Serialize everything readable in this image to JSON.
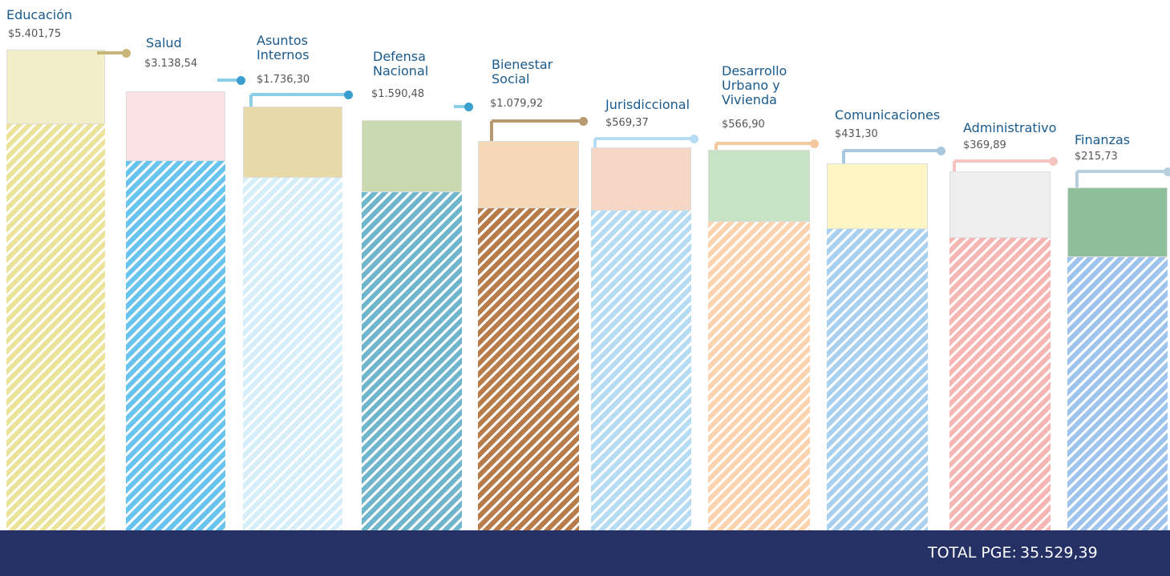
{
  "items": [
    {
      "name": "Educación",
      "amount": "$5.401,75"
    },
    {
      "name": "Salud",
      "amount": "$3.138,54"
    },
    {
      "name": "Asuntos Internos",
      "amount": "$1.736,30"
    },
    {
      "name": "Defensa Nacional",
      "amount": "$1.590,48"
    },
    {
      "name": "Bienestar Social",
      "amount": "$1.079,92"
    },
    {
      "name": "Jurisdiccional",
      "amount": "$569,37"
    },
    {
      "name": "Desarrollo Urbano y Vivienda",
      "amount": "$566,90"
    },
    {
      "name": "Comunicaciones",
      "amount": "$431,30"
    },
    {
      "name": "Administrativo",
      "amount": "$369,89"
    },
    {
      "name": "Finanzas",
      "amount": "$215,73"
    }
  ],
  "footer": {
    "label": "TOTAL PGE:",
    "total": "35.529,39"
  }
}
